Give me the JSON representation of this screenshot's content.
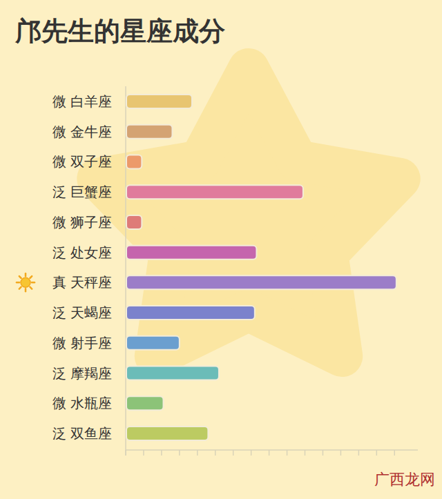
{
  "chart_data": {
    "type": "bar",
    "title": "邝先生的星座成分",
    "orientation": "horizontal",
    "categories": [
      "微 白羊座",
      "微 金牛座",
      "微 双子座",
      "泛 巨蟹座",
      "微 狮子座",
      "泛 处女座",
      "真 天秤座",
      "泛 天蝎座",
      "微 射手座",
      "泛 摩羯座",
      "微 水瓶座",
      "泛 双鱼座"
    ],
    "values": [
      3.7,
      2.6,
      0.9,
      9.9,
      0.9,
      7.3,
      15.1,
      7.2,
      3.0,
      5.2,
      2.1,
      4.6
    ],
    "colors": [
      "#e8c571",
      "#d4a373",
      "#ec9a6a",
      "#e07b9c",
      "#de7b78",
      "#c565ad",
      "#9b7dc8",
      "#7b82cc",
      "#6b9fcf",
      "#6bbcb8",
      "#8cc378",
      "#bccb62"
    ],
    "xlim": [
      0,
      16.3
    ],
    "xticks": [
      0,
      1,
      2,
      3,
      4,
      5,
      6,
      7,
      8,
      9,
      10,
      11,
      12,
      13,
      14,
      15
    ],
    "grid": false,
    "tick_labels": false,
    "annotations": [
      "广西龙网"
    ]
  }
}
